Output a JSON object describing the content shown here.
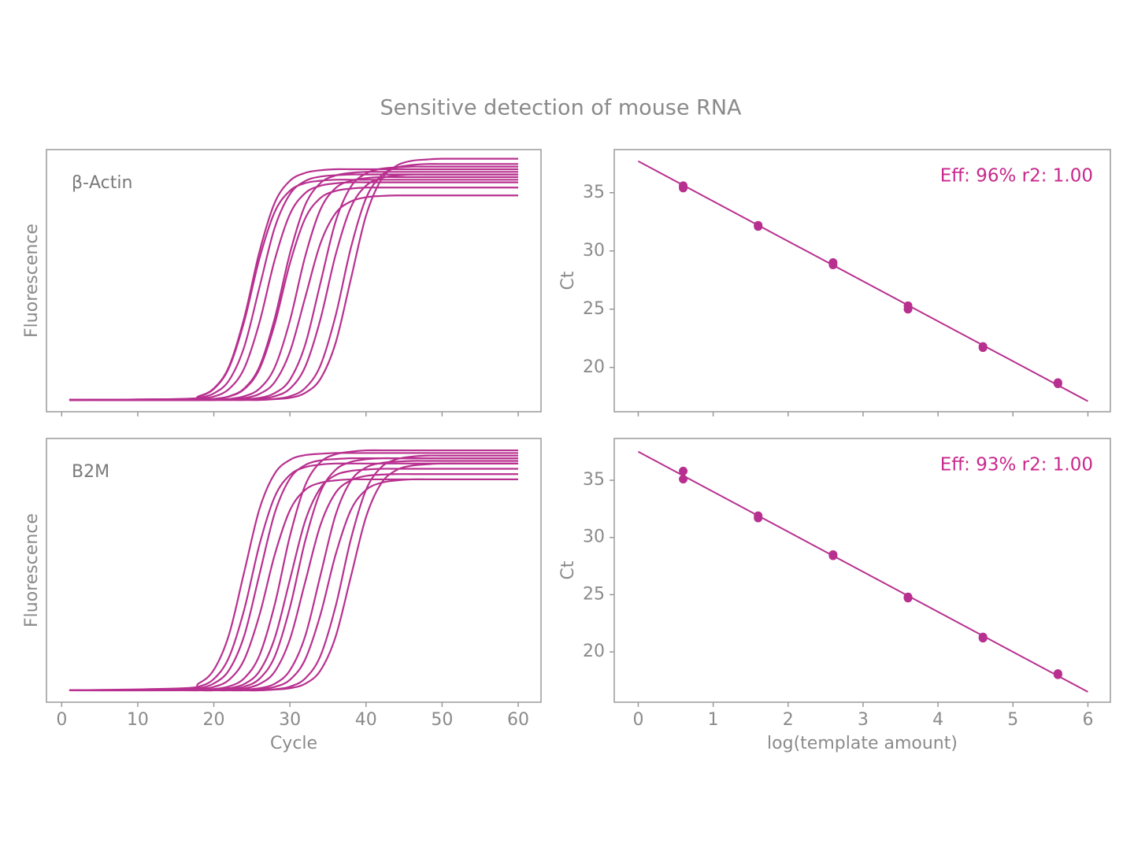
{
  "title": "Sensitive detection of mouse RNA",
  "chart_data": [
    {
      "type": "line",
      "label": "β-Actin",
      "ylabel": "Fluorescence",
      "color": "#b8308f",
      "xlim": [
        -2,
        63
      ],
      "ylim": [
        0,
        100
      ],
      "x": [
        1,
        16,
        18,
        20,
        22,
        24,
        26,
        28,
        30,
        32,
        34,
        36,
        38,
        40,
        42,
        44,
        46,
        48,
        50,
        55,
        60
      ],
      "series": [
        {
          "values": [
            4.5,
            4.9,
            5.9,
            8.9,
            17.3,
            35.9,
            61.1,
            79.7,
            88.1,
            91.1,
            92.1,
            92.5,
            92.5,
            92.5,
            92.5,
            92.5,
            92.5,
            92.5,
            92.5,
            92.5,
            92.5
          ]
        },
        {
          "values": [
            4.5,
            4.9,
            5.8,
            8.7,
            16.8,
            34.5,
            58.5,
            76.2,
            84.3,
            87.2,
            88.1,
            88.5,
            88.5,
            88.5,
            88.5,
            88.5,
            88.5,
            88.5,
            88.5,
            88.5,
            88.5
          ]
        },
        {
          "values": [
            4.5,
            4.8,
            5.3,
            7.0,
            12.0,
            24.8,
            47.5,
            70.2,
            83.0,
            88.0,
            89.7,
            90.2,
            90.5,
            90.5,
            90.5,
            90.5,
            90.5,
            90.5,
            90.5,
            90.5,
            90.5
          ]
        },
        {
          "values": [
            4.5,
            4.5,
            4.9,
            5.8,
            8.7,
            16.6,
            34.1,
            57.9,
            75.4,
            83.4,
            86.2,
            87.1,
            87.5,
            87.5,
            87.5,
            87.5,
            87.5,
            87.5,
            87.5,
            87.5,
            87.5
          ]
        },
        {
          "values": [
            4.5,
            4.5,
            4.5,
            4.9,
            5.9,
            8.9,
            17.2,
            35.6,
            60.4,
            78.8,
            87.2,
            90.1,
            91.1,
            91.5,
            91.5,
            91.5,
            91.5,
            91.5,
            91.5,
            91.5,
            91.5
          ]
        },
        {
          "values": [
            4.5,
            4.5,
            4.5,
            4.9,
            5.8,
            8.6,
            16.3,
            33.4,
            56.6,
            73.7,
            81.5,
            84.2,
            85.1,
            85.5,
            85.5,
            85.5,
            85.5,
            85.5,
            85.5,
            85.5,
            85.5
          ]
        },
        {
          "values": [
            4.5,
            4.5,
            4.5,
            4.5,
            4.9,
            5.9,
            8.8,
            16.9,
            34.8,
            59.2,
            77.1,
            85.3,
            88.1,
            89.1,
            89.5,
            89.5,
            89.5,
            89.5,
            89.5,
            89.5,
            89.5
          ]
        },
        {
          "values": [
            4.5,
            4.5,
            4.5,
            4.5,
            4.7,
            5.2,
            6.8,
            11.3,
            22.9,
            43.5,
            64.1,
            75.7,
            80.2,
            81.8,
            82.3,
            82.5,
            82.5,
            82.5,
            82.5,
            82.5,
            82.5
          ]
        },
        {
          "values": [
            4.5,
            4.5,
            4.5,
            4.5,
            4.5,
            4.8,
            5.3,
            7.1,
            12.2,
            25.5,
            49.0,
            72.5,
            85.8,
            90.9,
            92.7,
            93.2,
            93.5,
            93.5,
            93.5,
            93.5,
            93.5
          ]
        },
        {
          "values": [
            4.5,
            4.5,
            4.5,
            4.5,
            4.5,
            4.5,
            4.9,
            5.9,
            8.8,
            17.1,
            35.2,
            59.8,
            77.9,
            86.2,
            89.1,
            90.1,
            90.5,
            90.5,
            90.5,
            90.5,
            90.5
          ]
        },
        {
          "values": [
            4.5,
            4.5,
            4.5,
            4.5,
            4.5,
            4.5,
            4.5,
            4.9,
            5.9,
            9.0,
            17.6,
            36.6,
            62.4,
            81.4,
            90.0,
            93.1,
            94.1,
            94.5,
            94.5,
            94.5,
            94.5
          ]
        },
        {
          "values": [
            4.5,
            4.5,
            4.5,
            4.5,
            4.5,
            4.5,
            4.5,
            4.8,
            5.3,
            7.2,
            12.5,
            26.2,
            50.5,
            74.8,
            88.5,
            93.8,
            95.7,
            96.2,
            96.5,
            96.5,
            96.5
          ]
        }
      ]
    },
    {
      "type": "scatter",
      "annotation": "Eff: 96% r2: 1.00",
      "ylabel": "Ct",
      "color": "#b8308f",
      "annotation_color": "#c8288c",
      "xlim": [
        -0.32,
        6.3
      ],
      "ylim": [
        16.2,
        38.7
      ],
      "yticks": [
        20,
        25,
        30,
        35
      ],
      "x": [
        0.6,
        0.6,
        1.6,
        1.6,
        2.6,
        2.6,
        3.6,
        3.6,
        4.6,
        4.6,
        5.6,
        5.6
      ],
      "values": [
        35.6,
        35.4,
        32.2,
        32.1,
        29.0,
        28.8,
        25.3,
        25.0,
        21.8,
        21.7,
        18.7,
        18.6
      ],
      "fit": {
        "x": [
          0,
          6
        ],
        "values": [
          37.7,
          17.1
        ]
      }
    },
    {
      "type": "line",
      "label": "B2M",
      "ylabel": "Fluorescence",
      "xlabel": "Cycle",
      "color": "#b8308f",
      "xlim": [
        -2,
        63
      ],
      "ylim": [
        0,
        100
      ],
      "xticks": [
        0,
        10,
        20,
        30,
        40,
        50,
        60
      ],
      "x": [
        1,
        16,
        18,
        20,
        22,
        24,
        26,
        28,
        30,
        32,
        34,
        36,
        38,
        40,
        42,
        44,
        46,
        48,
        50,
        55,
        60
      ],
      "series": [
        {
          "values": [
            4.5,
            5.3,
            7.1,
            12.3,
            25.7,
            49.5,
            73.3,
            86.7,
            91.9,
            93.7,
            94.2,
            94.5,
            94.5,
            94.5,
            94.5,
            94.5,
            94.5,
            94.5,
            94.5,
            94.5,
            94.5
          ]
        },
        {
          "values": [
            4.5,
            4.9,
            5.9,
            8.8,
            17.1,
            35.2,
            59.8,
            77.9,
            86.2,
            89.1,
            90.1,
            90.5,
            90.5,
            90.5,
            90.5,
            90.5,
            90.5,
            90.5,
            90.5,
            90.5,
            90.5
          ]
        },
        {
          "values": [
            4.5,
            4.8,
            5.3,
            7.1,
            12.2,
            25.3,
            48.5,
            71.7,
            84.8,
            89.9,
            91.7,
            92.2,
            92.5,
            92.5,
            92.5,
            92.5,
            92.5,
            92.5,
            92.5,
            92.5,
            92.5
          ]
        },
        {
          "values": [
            4.5,
            4.5,
            4.9,
            5.8,
            8.5,
            16.2,
            33.1,
            55.9,
            72.8,
            80.5,
            83.2,
            84.1,
            84.5,
            84.5,
            84.5,
            84.5,
            84.5,
            84.5,
            84.5,
            84.5,
            84.5
          ]
        },
        {
          "values": [
            4.5,
            4.5,
            4.5,
            5.0,
            6.0,
            9.1,
            17.8,
            37.0,
            63.0,
            82.2,
            91.0,
            94.0,
            95.0,
            95.5,
            95.5,
            95.5,
            95.5,
            95.5,
            95.5,
            95.5,
            95.5
          ]
        },
        {
          "values": [
            4.5,
            4.5,
            4.5,
            4.8,
            5.3,
            6.9,
            11.8,
            24.3,
            46.5,
            68.7,
            81.2,
            86.1,
            87.7,
            88.2,
            88.5,
            88.5,
            88.5,
            88.5,
            88.5,
            88.5,
            88.5
          ]
        },
        {
          "values": [
            4.5,
            4.5,
            4.5,
            4.5,
            4.9,
            5.9,
            8.9,
            17.3,
            35.9,
            61.1,
            79.7,
            88.1,
            91.1,
            92.1,
            92.5,
            92.5,
            92.5,
            92.5,
            92.5,
            92.5,
            92.5
          ]
        },
        {
          "values": [
            4.5,
            4.5,
            4.5,
            4.5,
            4.7,
            5.2,
            6.9,
            11.6,
            23.9,
            45.5,
            67.1,
            79.4,
            84.1,
            85.8,
            86.3,
            86.5,
            86.5,
            86.5,
            86.5,
            86.5,
            86.5
          ]
        },
        {
          "values": [
            4.5,
            4.5,
            4.5,
            4.5,
            4.5,
            4.8,
            5.3,
            7.0,
            12.1,
            25.0,
            48.0,
            71.0,
            83.9,
            89.0,
            90.7,
            91.2,
            91.5,
            91.5,
            91.5,
            91.5,
            91.5
          ]
        },
        {
          "values": [
            4.5,
            4.5,
            4.5,
            4.5,
            4.5,
            4.5,
            4.9,
            5.8,
            8.5,
            16.2,
            33.1,
            55.9,
            72.8,
            80.5,
            83.2,
            84.1,
            84.5,
            84.5,
            84.5,
            84.5,
            84.5
          ]
        },
        {
          "values": [
            4.5,
            4.5,
            4.5,
            4.5,
            4.5,
            4.5,
            4.5,
            4.9,
            5.9,
            9.0,
            17.5,
            36.3,
            61.7,
            80.5,
            89.1,
            92.1,
            93.1,
            93.5,
            93.5,
            93.5,
            93.5
          ]
        },
        {
          "values": [
            4.5,
            4.5,
            4.5,
            4.5,
            4.5,
            4.5,
            4.5,
            4.8,
            5.3,
            7.0,
            12.0,
            24.8,
            47.5,
            70.2,
            83.0,
            88.0,
            89.7,
            90.2,
            90.5,
            90.5,
            90.5
          ]
        }
      ]
    },
    {
      "type": "scatter",
      "annotation": "Eff: 93% r2: 1.00",
      "ylabel": "Ct",
      "xlabel": "log(template amount)",
      "color": "#b8308f",
      "annotation_color": "#c8288c",
      "xlim": [
        -0.32,
        6.3
      ],
      "ylim": [
        15.6,
        38.65
      ],
      "yticks": [
        20,
        25,
        30,
        35
      ],
      "xticks": [
        0,
        1,
        2,
        3,
        4,
        5,
        6
      ],
      "x": [
        0.6,
        0.6,
        1.6,
        1.6,
        2.6,
        2.6,
        3.6,
        3.6,
        4.6,
        4.6,
        5.6,
        5.6
      ],
      "values": [
        35.8,
        35.1,
        31.9,
        31.7,
        28.5,
        28.4,
        24.8,
        24.7,
        21.3,
        21.2,
        18.1,
        18.0
      ],
      "fit": {
        "x": [
          0,
          6
        ],
        "values": [
          37.5,
          16.5
        ]
      }
    }
  ]
}
